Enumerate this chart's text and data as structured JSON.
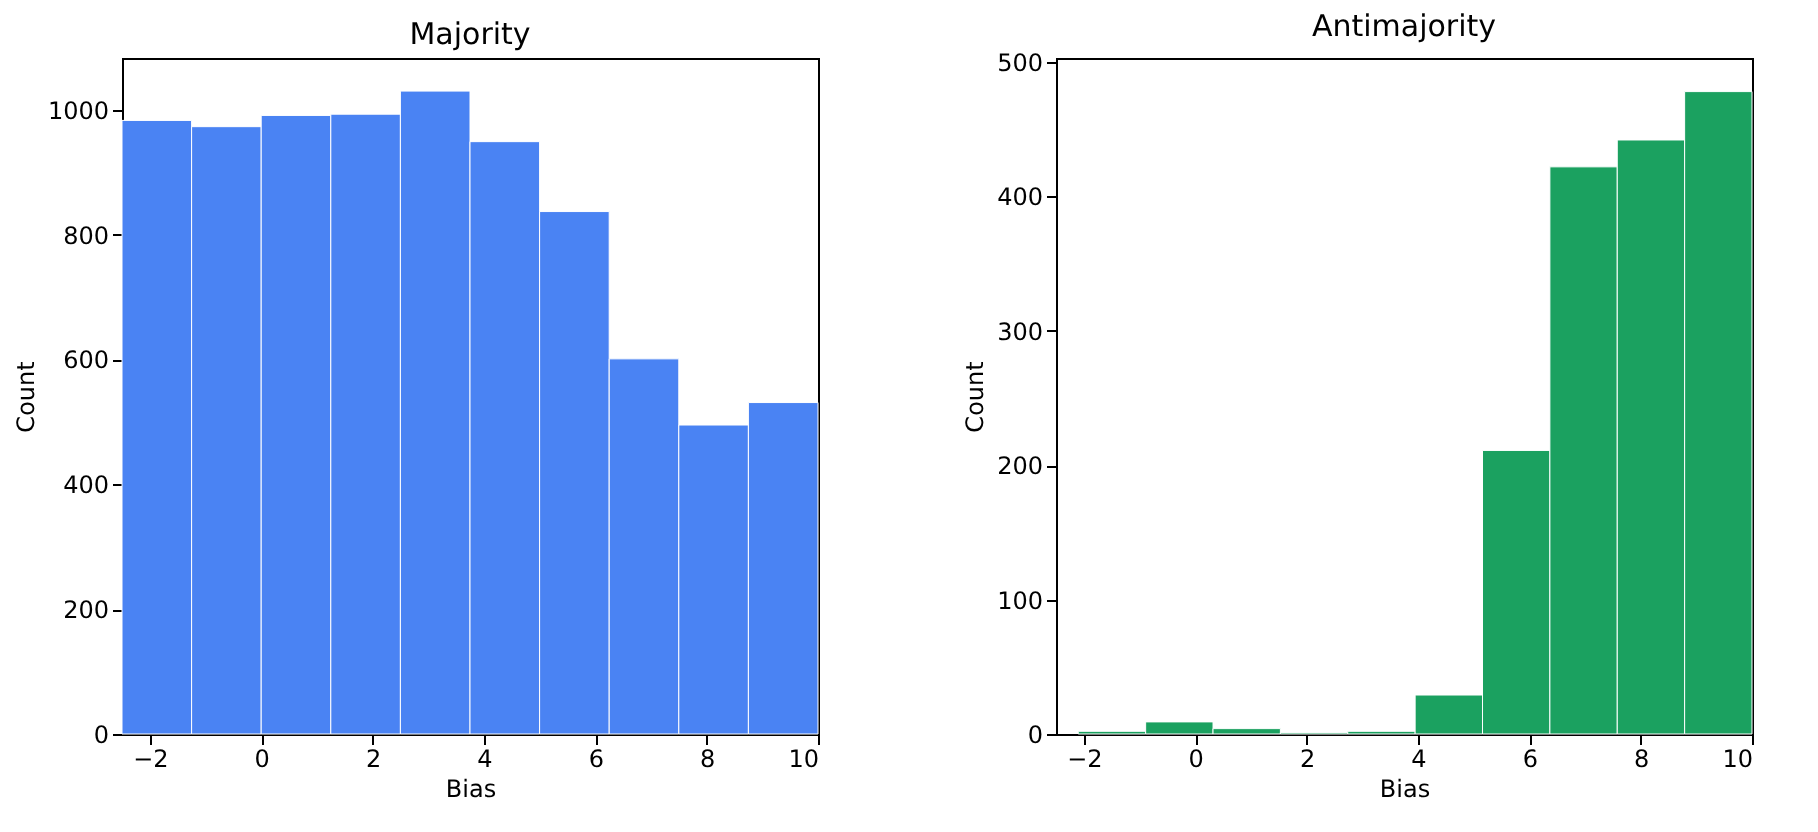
{
  "chart_data": [
    {
      "type": "histogram",
      "title": "Majority",
      "xlabel": "Bias",
      "ylabel": "Count",
      "bins": [
        -2.5,
        -1.25,
        0,
        1.25,
        2.5,
        3.75,
        5,
        6.25,
        7.5,
        8.75,
        10
      ],
      "values": [
        983,
        973,
        991,
        993,
        1030,
        949,
        837,
        601,
        495,
        531
      ],
      "color": "#4a83f3",
      "xlim": [
        -2.5,
        10
      ],
      "xticks": [
        {
          "value": -2,
          "label": "−2"
        },
        0,
        2,
        4,
        6,
        8,
        10
      ],
      "ylim": [
        0,
        1083
      ],
      "yticks": [
        0,
        200,
        400,
        600,
        800,
        1000
      ],
      "grid": false
    },
    {
      "type": "histogram",
      "title": "Antimajority",
      "xlabel": "Bias",
      "ylabel": "Count",
      "bins": [
        -2.1,
        -0.89,
        0.32,
        1.53,
        2.74,
        3.95,
        5.16,
        6.37,
        7.58,
        8.79,
        10
      ],
      "values": [
        2,
        9,
        4,
        1,
        2,
        29,
        211,
        422,
        442,
        478
      ],
      "color": "#1ba160",
      "xlim": [
        -2.5,
        10
      ],
      "xticks": [
        {
          "value": -2,
          "label": "−2"
        },
        0,
        2,
        4,
        6,
        8,
        10
      ],
      "ylim": [
        0,
        503
      ],
      "yticks": [
        0,
        100,
        200,
        300,
        400,
        500
      ],
      "grid": false
    }
  ]
}
